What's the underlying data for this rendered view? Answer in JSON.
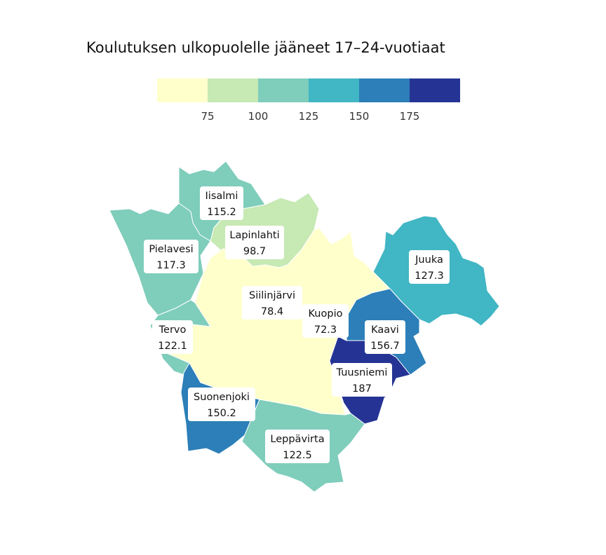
{
  "chart_data": {
    "type": "choropleth-map",
    "title": "Koulutuksen ulkopuolelle jääneet 17–24-vuotiaat",
    "legend": {
      "placement": "top",
      "breaks": [
        75,
        100,
        125,
        150,
        175
      ],
      "tick_labels": [
        "75",
        "100",
        "125",
        "150",
        "175"
      ],
      "colors": [
        "#ffffcc",
        "#c7e9b4",
        "#7fcdbb",
        "#41b6c4",
        "#2c7fb8",
        "#253494"
      ]
    },
    "regions": [
      {
        "name": "Iisalmi",
        "value": 115.2,
        "value_label": "115.2"
      },
      {
        "name": "Lapinlahti",
        "value": 98.7,
        "value_label": "98.7"
      },
      {
        "name": "Pielavesi",
        "value": 117.3,
        "value_label": "117.3"
      },
      {
        "name": "Juuka",
        "value": 127.3,
        "value_label": "127.3"
      },
      {
        "name": "Siilinjärvi",
        "value": 78.4,
        "value_label": "78.4"
      },
      {
        "name": "Kuopio",
        "value": 72.3,
        "value_label": "72.3"
      },
      {
        "name": "Kaavi",
        "value": 156.7,
        "value_label": "156.7"
      },
      {
        "name": "Tervo",
        "value": 122.1,
        "value_label": "122.1"
      },
      {
        "name": "Tuusniemi",
        "value": 187,
        "value_label": "187"
      },
      {
        "name": "Suonenjoki",
        "value": 150.2,
        "value_label": "150.2"
      },
      {
        "name": "Leppävirta",
        "value": 122.5,
        "value_label": "122.5"
      }
    ]
  }
}
